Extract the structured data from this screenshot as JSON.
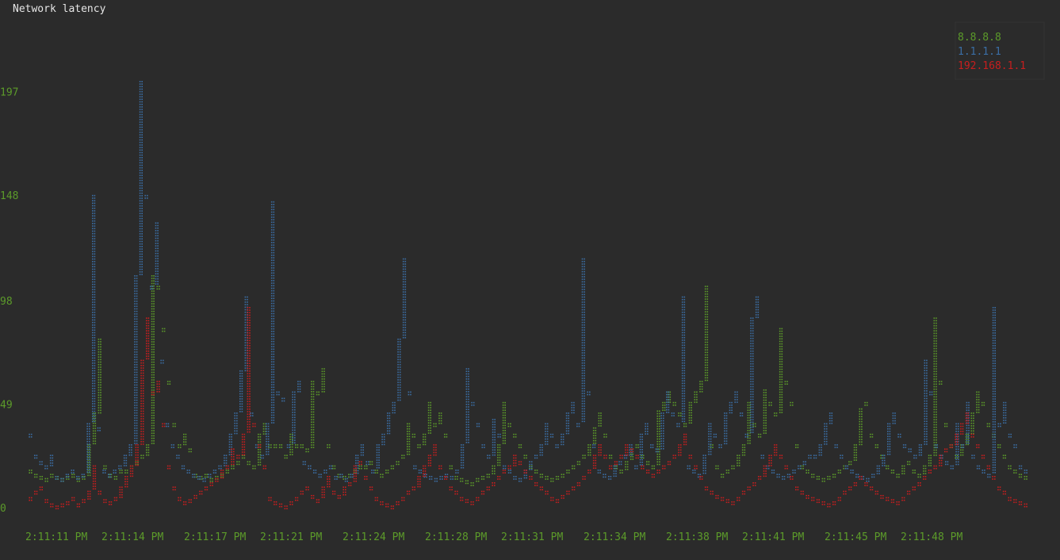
{
  "chart_data": {
    "type": "scatter",
    "title": "Network latency",
    "xlabel": "",
    "ylabel": "",
    "ylim": [
      0,
      230
    ],
    "y_ticks": [
      "0",
      "49",
      "98",
      "148",
      "197"
    ],
    "x_ticks": [
      "2:11:11 PM",
      "2:11:14 PM",
      "2:11:17 PM",
      "2:11:21 PM",
      "2:11:24 PM",
      "2:11:28 PM",
      "2:11:31 PM",
      "2:11:34 PM",
      "2:11:38 PM",
      "2:11:41 PM",
      "2:11:45 PM",
      "2:11:48 PM"
    ],
    "legend_position": "top-right",
    "grid": false,
    "series": [
      {
        "name": "8.8.8.8",
        "color": "#5c9b2a",
        "values": [
          18,
          16,
          15,
          14,
          16,
          15,
          14,
          15,
          16,
          14,
          15,
          30,
          45,
          80,
          20,
          16,
          15,
          18,
          18,
          20,
          22,
          25,
          30,
          110,
          105,
          85,
          60,
          40,
          30,
          35,
          28,
          16,
          15,
          16,
          14,
          15,
          16,
          18,
          20,
          22,
          25,
          22,
          20,
          35,
          40,
          30,
          30,
          30,
          25,
          35,
          30,
          30,
          28,
          60,
          55,
          66,
          30,
          20,
          16,
          15,
          16,
          18,
          20,
          20,
          22,
          18,
          16,
          18,
          20,
          22,
          25,
          40,
          35,
          30,
          35,
          50,
          40,
          45,
          35,
          20,
          15,
          14,
          13,
          12,
          14,
          15,
          16,
          20,
          30,
          50,
          40,
          35,
          30,
          25,
          20,
          18,
          16,
          15,
          14,
          15,
          16,
          18,
          20,
          22,
          25,
          30,
          38,
          45,
          35,
          25,
          20,
          18,
          22,
          28,
          30,
          25,
          22,
          20,
          46,
          50,
          55,
          50,
          45,
          40,
          50,
          55,
          60,
          105,
          30,
          20,
          16,
          18,
          20,
          25,
          30,
          50,
          40,
          35,
          56,
          50,
          45,
          85,
          60,
          50,
          30,
          20,
          18,
          16,
          15,
          14,
          15,
          16,
          18,
          20,
          22,
          30,
          47,
          50,
          35,
          30,
          25,
          20,
          18,
          16,
          20,
          22,
          18,
          16,
          20,
          25,
          90,
          60,
          40,
          30,
          25,
          30,
          35,
          45,
          55,
          50,
          40,
          35,
          30,
          25,
          20,
          18,
          16,
          15
        ]
      },
      {
        "name": "1.1.1.1",
        "color": "#3b6ea5",
        "values": [
          35,
          25,
          22,
          20,
          25,
          15,
          14,
          16,
          18,
          15,
          16,
          40,
          148,
          38,
          18,
          16,
          18,
          20,
          25,
          30,
          110,
          202,
          148,
          105,
          135,
          70,
          40,
          30,
          25,
          20,
          18,
          16,
          15,
          14,
          16,
          18,
          20,
          25,
          35,
          45,
          65,
          100,
          45,
          30,
          25,
          40,
          145,
          55,
          52,
          30,
          55,
          60,
          22,
          20,
          18,
          16,
          18,
          20,
          15,
          16,
          14,
          16,
          25,
          30,
          22,
          18,
          30,
          35,
          45,
          50,
          80,
          118,
          55,
          20,
          18,
          16,
          15,
          14,
          15,
          16,
          15,
          18,
          30,
          66,
          50,
          40,
          30,
          25,
          42,
          35,
          20,
          18,
          15,
          14,
          18,
          22,
          25,
          30,
          40,
          35,
          30,
          35,
          45,
          50,
          40,
          118,
          55,
          30,
          18,
          16,
          15,
          20,
          22,
          25,
          30,
          20,
          35,
          40,
          30,
          28,
          45,
          55,
          45,
          40,
          100,
          20,
          18,
          16,
          25,
          40,
          35,
          30,
          45,
          50,
          55,
          45,
          35,
          90,
          100,
          25,
          20,
          18,
          16,
          15,
          16,
          18,
          20,
          22,
          25,
          25,
          30,
          40,
          45,
          30,
          25,
          20,
          18,
          16,
          15,
          14,
          16,
          20,
          25,
          40,
          45,
          35,
          30,
          28,
          25,
          30,
          70,
          55,
          30,
          25,
          22,
          20,
          40,
          30,
          50,
          25,
          20,
          18,
          16,
          95,
          40,
          50,
          35,
          30,
          20,
          18
        ]
      },
      {
        "name": "192.168.1.1",
        "color": "#c81e1e",
        "values": [
          5,
          8,
          10,
          4,
          2,
          1,
          2,
          3,
          5,
          2,
          4,
          8,
          20,
          8,
          4,
          3,
          5,
          10,
          15,
          20,
          30,
          70,
          90,
          55,
          60,
          40,
          20,
          10,
          5,
          3,
          4,
          6,
          8,
          10,
          12,
          14,
          18,
          20,
          28,
          25,
          35,
          95,
          40,
          30,
          20,
          5,
          3,
          2,
          1,
          3,
          5,
          8,
          10,
          6,
          4,
          10,
          15,
          8,
          6,
          10,
          12,
          20,
          22,
          15,
          10,
          5,
          3,
          2,
          1,
          3,
          5,
          8,
          10,
          15,
          20,
          25,
          30,
          20,
          15,
          10,
          8,
          5,
          4,
          3,
          5,
          8,
          10,
          12,
          15,
          18,
          20,
          25,
          22,
          18,
          15,
          12,
          10,
          8,
          5,
          4,
          6,
          8,
          10,
          12,
          15,
          18,
          25,
          30,
          25,
          20,
          22,
          25,
          30,
          28,
          25,
          20,
          18,
          16,
          18,
          20,
          22,
          25,
          30,
          35,
          25,
          20,
          15,
          10,
          8,
          6,
          5,
          4,
          3,
          5,
          8,
          10,
          12,
          15,
          20,
          25,
          30,
          25,
          20,
          15,
          10,
          8,
          6,
          5,
          4,
          3,
          2,
          3,
          5,
          8,
          10,
          12,
          15,
          12,
          10,
          8,
          6,
          5,
          4,
          3,
          5,
          8,
          10,
          12,
          15,
          18,
          20,
          25,
          28,
          30,
          35,
          40,
          45,
          35,
          30,
          25,
          20,
          15,
          10,
          8,
          5,
          4,
          3,
          2
        ]
      }
    ]
  }
}
